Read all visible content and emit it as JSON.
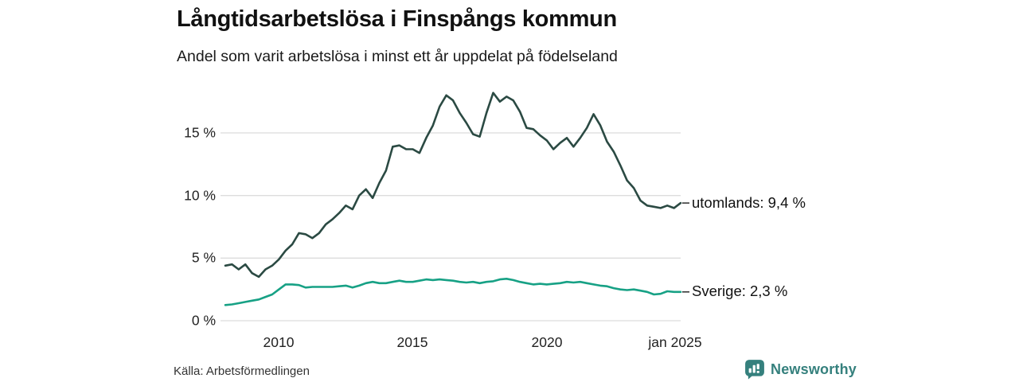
{
  "header": {
    "title": "Långtidsarbetslösa i Finspångs kommun",
    "subtitle": "Andel som varit arbetslösa i minst ett år uppdelat på födelseland"
  },
  "footer": {
    "source": "Källa: Arbetsförmedlingen",
    "brand_name": "Newsworthy",
    "brand_icon": "bar-chart-speech-bubble-icon",
    "brand_color": "#35807d"
  },
  "colors": {
    "background": "#ffffff",
    "gridline": "#dcdcdc",
    "text": "#1a1a1a",
    "tick_dash": "#3a3a3a"
  },
  "chart_data": {
    "type": "line",
    "title": "Långtidsarbetslösa i Finspångs kommun",
    "subtitle": "Andel som varit arbetslösa i minst ett år uppdelat på födelseland",
    "xlabel": "",
    "ylabel": "",
    "xlim": [
      2008,
      2025
    ],
    "ylim": [
      0,
      18.7
    ],
    "grid": "horizontal",
    "legend_position": "right-annotations",
    "y_ticks": [
      {
        "value": 0,
        "label": "0 %"
      },
      {
        "value": 5,
        "label": "5 %"
      },
      {
        "value": 10,
        "label": "10 %"
      },
      {
        "value": 15,
        "label": "15 %"
      }
    ],
    "x_ticks": [
      {
        "value": 2010,
        "label": "2010"
      },
      {
        "value": 2015,
        "label": "2015"
      },
      {
        "value": 2020,
        "label": "2020"
      },
      {
        "value": 2025,
        "label": "jan 2025"
      }
    ],
    "x": [
      2008.0,
      2008.25,
      2008.5,
      2008.75,
      2009.0,
      2009.25,
      2009.5,
      2009.75,
      2010.0,
      2010.25,
      2010.5,
      2010.75,
      2011.0,
      2011.25,
      2011.5,
      2011.75,
      2012.0,
      2012.25,
      2012.5,
      2012.75,
      2013.0,
      2013.25,
      2013.5,
      2013.75,
      2014.0,
      2014.25,
      2014.5,
      2014.75,
      2015.0,
      2015.25,
      2015.5,
      2015.75,
      2016.0,
      2016.25,
      2016.5,
      2016.75,
      2017.0,
      2017.25,
      2017.5,
      2017.75,
      2018.0,
      2018.25,
      2018.5,
      2018.75,
      2019.0,
      2019.25,
      2019.5,
      2019.75,
      2020.0,
      2020.25,
      2020.5,
      2020.75,
      2021.0,
      2021.25,
      2021.5,
      2021.75,
      2022.0,
      2022.25,
      2022.5,
      2022.75,
      2023.0,
      2023.25,
      2023.5,
      2023.75,
      2024.0,
      2024.25,
      2024.5,
      2024.75,
      2025.0
    ],
    "series": [
      {
        "name": "utomlands",
        "annotation": "utomlands: 9,4 %",
        "latest": 9.4,
        "color": "#2b4a43",
        "values": [
          4.4,
          4.5,
          4.1,
          4.5,
          3.8,
          3.5,
          4.1,
          4.4,
          4.9,
          5.6,
          6.1,
          7.0,
          6.9,
          6.6,
          7.0,
          7.7,
          8.1,
          8.6,
          9.2,
          8.9,
          10.0,
          10.5,
          9.8,
          11.0,
          12.0,
          13.9,
          14.0,
          13.7,
          13.7,
          13.4,
          14.6,
          15.6,
          17.1,
          18.0,
          17.6,
          16.6,
          15.8,
          14.9,
          14.7,
          16.6,
          18.2,
          17.5,
          17.9,
          17.6,
          16.7,
          15.4,
          15.3,
          14.8,
          14.4,
          13.7,
          14.2,
          14.6,
          13.9,
          14.6,
          15.4,
          16.5,
          15.6,
          14.3,
          13.5,
          12.4,
          11.2,
          10.6,
          9.6,
          9.2,
          9.1,
          9.0,
          9.2,
          9.0,
          9.4
        ]
      },
      {
        "name": "Sverige",
        "annotation": "Sverige: 2,3 %",
        "latest": 2.3,
        "color": "#17a185",
        "values": [
          1.25,
          1.3,
          1.4,
          1.5,
          1.6,
          1.7,
          1.9,
          2.1,
          2.5,
          2.9,
          2.9,
          2.85,
          2.65,
          2.7,
          2.7,
          2.7,
          2.7,
          2.75,
          2.8,
          2.65,
          2.8,
          3.0,
          3.1,
          3.0,
          3.0,
          3.1,
          3.2,
          3.1,
          3.1,
          3.2,
          3.3,
          3.25,
          3.3,
          3.25,
          3.2,
          3.1,
          3.05,
          3.1,
          3.0,
          3.1,
          3.15,
          3.3,
          3.35,
          3.25,
          3.1,
          3.0,
          2.9,
          2.95,
          2.9,
          2.95,
          3.0,
          3.1,
          3.05,
          3.1,
          3.0,
          2.9,
          2.8,
          2.75,
          2.6,
          2.5,
          2.45,
          2.5,
          2.4,
          2.3,
          2.1,
          2.15,
          2.35,
          2.3,
          2.3
        ]
      }
    ]
  }
}
